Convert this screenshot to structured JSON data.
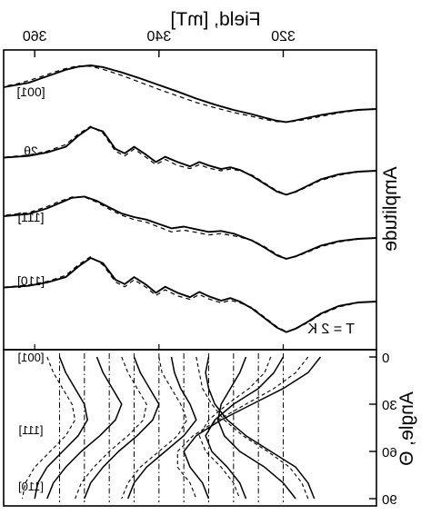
{
  "figure": {
    "mirrored": true,
    "field_axis": {
      "label": "Field, [mT]",
      "ticks": [
        "320",
        "340",
        "360"
      ],
      "tick_values": [
        320,
        340,
        360
      ],
      "range": [
        305,
        365
      ]
    },
    "amplitude_axis": {
      "label": "Amplitude"
    },
    "angle_axis": {
      "label": "Angle, Θ",
      "ticks": [
        "0",
        "30",
        "60",
        "90"
      ],
      "tick_values": [
        0,
        30,
        60,
        90
      ],
      "range": [
        0,
        90
      ]
    },
    "temperature": "T = 2 K",
    "trace_labels": [
      "[001]",
      "2θ",
      "[111]",
      "[110]"
    ],
    "orientation_labels": [
      "[001]",
      "[111]",
      "[110]"
    ]
  },
  "chart_data": [
    {
      "type": "line",
      "panel": "spectra",
      "xlabel": "Field, [mT]",
      "ylabel": "Amplitude",
      "xlim": [
        305,
        365
      ],
      "x_ticks": [
        320,
        340,
        360
      ],
      "grid": false,
      "series": [
        {
          "name": "[001]",
          "style": "solid",
          "x": [
            305,
            308,
            311,
            314,
            316,
            318,
            319.5,
            321,
            323,
            325,
            328,
            331,
            334,
            337,
            340,
            343,
            346,
            349,
            351,
            353,
            355,
            357,
            359,
            361,
            363,
            365
          ],
          "y": [
            0.0,
            -0.02,
            -0.07,
            -0.14,
            -0.2,
            -0.26,
            -0.3,
            -0.27,
            -0.2,
            -0.12,
            -0.02,
            0.1,
            0.24,
            0.4,
            0.55,
            0.7,
            0.84,
            0.96,
            1.0,
            0.97,
            0.9,
            0.8,
            0.7,
            0.6,
            0.55,
            0.5
          ]
        },
        {
          "name": "[001] fit",
          "style": "dashed",
          "x": [
            305,
            308,
            311,
            314,
            316,
            318,
            319.5,
            321,
            323,
            325,
            328,
            331,
            334,
            337,
            340,
            343,
            346,
            349,
            351,
            353,
            355,
            357,
            359,
            361,
            363,
            365
          ],
          "y": [
            0.0,
            -0.03,
            -0.09,
            -0.17,
            -0.23,
            -0.28,
            -0.3,
            -0.29,
            -0.24,
            -0.17,
            -0.08,
            0.03,
            0.15,
            0.3,
            0.45,
            0.61,
            0.77,
            0.91,
            0.98,
            0.99,
            0.93,
            0.84,
            0.74,
            0.65,
            0.57,
            0.52
          ]
        },
        {
          "name": "2θ",
          "style": "solid",
          "x": [
            305,
            308,
            311,
            314,
            316,
            318,
            319.5,
            321,
            323,
            325,
            327,
            328.5,
            330,
            332,
            333.5,
            335,
            337,
            339,
            340.5,
            342,
            344,
            345.5,
            347,
            349,
            351,
            353,
            355,
            358,
            361,
            365
          ],
          "y": [
            0.0,
            -0.02,
            -0.08,
            -0.2,
            -0.34,
            -0.48,
            -0.55,
            -0.48,
            -0.3,
            -0.12,
            0.02,
            0.08,
            0.04,
            0.12,
            0.2,
            0.1,
            0.2,
            0.32,
            0.2,
            0.36,
            0.55,
            0.4,
            0.5,
            0.9,
            1.0,
            0.8,
            0.55,
            0.42,
            0.34,
            0.3
          ]
        },
        {
          "name": "2θ fit",
          "style": "dashed",
          "x": [
            305,
            308,
            311,
            314,
            316,
            318,
            319.5,
            321,
            323,
            325,
            327,
            328.5,
            330,
            332,
            333.5,
            335,
            337,
            339,
            340.5,
            342,
            344,
            345.5,
            347,
            349,
            351,
            353,
            355,
            358,
            361,
            365
          ],
          "y": [
            0.0,
            -0.03,
            -0.1,
            -0.22,
            -0.36,
            -0.49,
            -0.54,
            -0.46,
            -0.28,
            -0.1,
            0.0,
            0.04,
            0.0,
            0.06,
            0.14,
            0.05,
            0.12,
            0.26,
            0.14,
            0.3,
            0.5,
            0.34,
            0.45,
            0.86,
            1.02,
            0.84,
            0.6,
            0.45,
            0.36,
            0.31
          ]
        },
        {
          "name": "[111]",
          "style": "solid",
          "x": [
            305,
            308,
            311,
            314,
            316,
            318,
            319.5,
            321,
            323,
            325,
            328,
            330,
            332,
            334,
            336,
            338,
            340,
            342,
            344,
            346,
            348,
            350,
            352,
            354,
            356,
            358,
            361,
            365
          ],
          "y": [
            0.0,
            -0.02,
            -0.07,
            -0.18,
            -0.3,
            -0.42,
            -0.48,
            -0.4,
            -0.22,
            -0.06,
            0.1,
            0.16,
            0.14,
            0.2,
            0.26,
            0.22,
            0.32,
            0.42,
            0.48,
            0.56,
            0.7,
            0.85,
            0.95,
            0.92,
            0.8,
            0.68,
            0.55,
            0.5
          ]
        },
        {
          "name": "[111] fit",
          "style": "dashed",
          "x": [
            305,
            308,
            311,
            314,
            316,
            318,
            319.5,
            321,
            323,
            325,
            328,
            330,
            332,
            334,
            336,
            338,
            340,
            342,
            344,
            346,
            348,
            350,
            352,
            354,
            356,
            358,
            361,
            365
          ],
          "y": [
            0.0,
            -0.03,
            -0.09,
            -0.2,
            -0.32,
            -0.43,
            -0.47,
            -0.38,
            -0.2,
            -0.05,
            0.05,
            0.1,
            0.07,
            0.13,
            0.18,
            0.14,
            0.25,
            0.36,
            0.42,
            0.52,
            0.66,
            0.82,
            0.94,
            0.94,
            0.84,
            0.72,
            0.58,
            0.52
          ]
        },
        {
          "name": "[110]",
          "style": "solid",
          "x": [
            305,
            308,
            311,
            314,
            316,
            318,
            319.5,
            321,
            323,
            325,
            327,
            328.5,
            330,
            332,
            333.5,
            335,
            337,
            339,
            340.5,
            342,
            344,
            345.5,
            347,
            349,
            351,
            353,
            355,
            358,
            361,
            365
          ],
          "y": [
            0.0,
            -0.02,
            -0.1,
            -0.28,
            -0.46,
            -0.62,
            -0.7,
            -0.6,
            -0.38,
            -0.16,
            0.0,
            0.08,
            0.02,
            0.12,
            0.22,
            0.1,
            0.2,
            0.34,
            0.2,
            0.38,
            0.56,
            0.4,
            0.5,
            0.88,
            1.0,
            0.8,
            0.56,
            0.44,
            0.36,
            0.32
          ]
        },
        {
          "name": "[110] fit",
          "style": "dashed",
          "x": [
            305,
            308,
            311,
            314,
            316,
            318,
            319.5,
            321,
            323,
            325,
            327,
            328.5,
            330,
            332,
            333.5,
            335,
            337,
            339,
            340.5,
            342,
            344,
            345.5,
            347,
            349,
            351,
            353,
            355,
            358,
            361,
            365
          ],
          "y": [
            0.0,
            -0.03,
            -0.12,
            -0.3,
            -0.48,
            -0.63,
            -0.69,
            -0.58,
            -0.36,
            -0.14,
            -0.03,
            0.03,
            -0.03,
            0.06,
            0.16,
            0.05,
            0.13,
            0.27,
            0.14,
            0.32,
            0.5,
            0.34,
            0.45,
            0.84,
            1.03,
            0.84,
            0.6,
            0.46,
            0.38,
            0.33
          ]
        }
      ]
    },
    {
      "type": "line",
      "panel": "angular-dependence",
      "xlabel": "Field, [mT]",
      "ylabel": "Angle, Θ",
      "xlim": [
        305,
        365
      ],
      "ylim": [
        0,
        90
      ],
      "y_ticks": [
        0,
        30,
        60,
        90
      ],
      "grid": false,
      "angles": [
        0,
        10,
        20,
        30,
        40,
        50,
        60,
        70,
        80,
        90
      ],
      "lines": [
        {
          "style": "solid",
          "x": [
            314,
            316,
            320,
            325,
            330,
            334,
            336,
            335,
            333,
            332
          ]
        },
        {
          "style": "solid",
          "x": [
            320,
            321.5,
            324,
            328,
            331,
            332.5,
            331.5,
            329,
            327,
            326
          ]
        },
        {
          "style": "solid",
          "x": [
            326,
            327,
            328.5,
            330,
            330.5,
            329.5,
            327,
            323,
            320,
            318
          ]
        },
        {
          "style": "solid",
          "x": [
            332,
            332.5,
            332,
            331,
            329,
            326,
            322,
            318,
            316,
            315
          ]
        },
        {
          "style": "solid",
          "x": [
            338,
            337.5,
            336.5,
            335,
            334,
            336,
            339,
            342,
            344,
            345
          ]
        },
        {
          "style": "solid",
          "x": [
            344,
            343,
            341.5,
            340,
            341,
            343.5,
            346.5,
            349,
            351,
            352
          ]
        },
        {
          "style": "solid",
          "x": [
            350,
            349,
            347.5,
            346,
            347,
            349.5,
            352.5,
            355,
            357,
            358
          ]
        },
        {
          "style": "solid",
          "x": [
            356,
            355,
            353.5,
            352,
            351.5,
            353,
            355.5,
            358,
            359.5,
            360
          ]
        },
        {
          "style": "dashed",
          "x": [
            316,
            318,
            321.5,
            326,
            330.5,
            334.5,
            337,
            337,
            335,
            334
          ]
        },
        {
          "style": "dashed",
          "x": [
            322,
            323,
            325.5,
            329,
            332,
            333.5,
            332.5,
            330,
            328,
            327
          ]
        },
        {
          "style": "dashed",
          "x": [
            334,
            333.5,
            333,
            331.5,
            329.5,
            326.5,
            322.5,
            319,
            317,
            316
          ]
        },
        {
          "style": "dashed",
          "x": [
            340,
            339.5,
            338,
            336.5,
            335.5,
            337,
            340,
            343,
            345,
            346
          ]
        },
        {
          "style": "dashed",
          "x": [
            346,
            345,
            343.5,
            342,
            342.5,
            345,
            348,
            350.5,
            352.5,
            353.5
          ]
        },
        {
          "style": "dashed",
          "x": [
            358,
            357,
            355.5,
            354,
            353.5,
            355,
            357.5,
            360,
            361.5,
            362
          ]
        }
      ],
      "markers": [
        {
          "style": "dash-dot",
          "x": 320
        },
        {
          "style": "dash-dot",
          "x": 324
        },
        {
          "style": "dash-dot",
          "x": 328
        },
        {
          "style": "dash-dot",
          "x": 332
        },
        {
          "style": "dash-dot",
          "x": 336
        },
        {
          "style": "dash-dot",
          "x": 340
        },
        {
          "style": "dash-dot",
          "x": 344
        },
        {
          "style": "dash-dot",
          "x": 348
        },
        {
          "style": "dash-dot",
          "x": 352
        },
        {
          "style": "dash-dot",
          "x": 356
        }
      ]
    }
  ]
}
